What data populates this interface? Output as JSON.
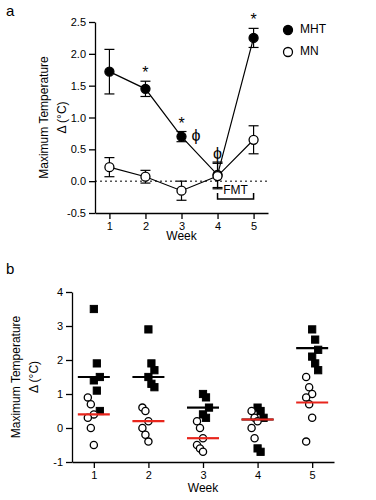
{
  "chart_data": [
    {
      "type": "line",
      "panel": "a",
      "x_label": "Week",
      "y_label": [
        "Maximum  Temperature",
        "Δ (°C)"
      ],
      "categories": [
        "1",
        "2",
        "3",
        "4",
        "5"
      ],
      "series": [
        {
          "name": "MHT",
          "color": "#000000",
          "marker": "circle",
          "line_style": "solid",
          "values": [
            1.72,
            1.45,
            0.7,
            0.1,
            2.25
          ],
          "errors": [
            0.35,
            0.12,
            0.08,
            0.2,
            0.15
          ]
        },
        {
          "name": "MN",
          "color": "#000000",
          "marker": "circle-open",
          "line_style": "solid",
          "values": [
            0.22,
            0.07,
            -0.15,
            0.08,
            0.65
          ],
          "errors": [
            0.15,
            0.1,
            0.15,
            0.2,
            0.22
          ]
        }
      ],
      "ylim": [
        -0.5,
        2.5
      ],
      "yticks": [
        -0.5,
        {
          "value": 0,
          "label": "0.0"
        },
        0.5,
        {
          "value": 1,
          "label": "1.0"
        },
        1.5,
        {
          "value": 2,
          "label": "2.0"
        },
        2.5
      ],
      "hline": 0,
      "annotations": [
        {
          "text": "*",
          "category": "2",
          "series": "MHT",
          "position": "above"
        },
        {
          "text": "*",
          "category": "3",
          "series": "MHT",
          "position": "above"
        },
        {
          "text": "ϕ",
          "category": "3",
          "series": "MHT",
          "position": "right"
        },
        {
          "text": "ϕ",
          "category": "4",
          "series": "MHT",
          "position": "above"
        },
        {
          "text": "*",
          "category": "5",
          "series": "MHT",
          "position": "above"
        }
      ],
      "bracket": {
        "text": "FMT",
        "from": "4",
        "to": "5"
      },
      "legend": "right"
    },
    {
      "type": "scatter",
      "panel": "b",
      "x_label": "Week",
      "y_label": [
        "Maximum  Temperature",
        "Δ (°C)"
      ],
      "categories": [
        "1",
        "2",
        "3",
        "4",
        "5"
      ],
      "series": [
        {
          "type": "scatter",
          "marker": "square",
          "color": "#000000",
          "values": [
            [
              3.5,
              1.9,
              1.5,
              1.4,
              1.1,
              0.5
            ],
            [
              2.9,
              1.9,
              1.7,
              1.5,
              1.3,
              1.2
            ],
            [
              1.0,
              0.9,
              0.6,
              0.4,
              0.3
            ],
            [
              0.6,
              0.5,
              0.3,
              -0.6,
              -0.7
            ],
            [
              2.9,
              2.6,
              2.3,
              2.1,
              1.9,
              1.7
            ]
          ]
        },
        {
          "type": "scatter",
          "marker": "circle-open",
          "color": "#000000",
          "values": [
            [
              0.9,
              0.7,
              0.4,
              0.3,
              0.0,
              -0.5
            ],
            [
              0.6,
              0.5,
              0.2,
              0.0,
              -0.2,
              -0.4
            ],
            [
              0.2,
              0.0,
              -0.3,
              -0.5,
              -0.6,
              -0.7
            ],
            [
              0.5,
              0.3,
              0.2,
              0.0,
              -0.3
            ],
            [
              1.5,
              1.2,
              1.0,
              0.9,
              0.7,
              0.3,
              -0.4
            ]
          ]
        },
        {
          "type": "mean",
          "line_style": "solid",
          "color": "#000000",
          "values": [
            1.5,
            1.5,
            0.6,
            0.25,
            2.35
          ]
        },
        {
          "type": "mean",
          "line_style": "solid",
          "color": "#e8251c",
          "values": [
            0.4,
            0.2,
            -0.3,
            0.25,
            0.75
          ]
        }
      ],
      "ylim": [
        -1,
        4
      ],
      "yticks": [
        -1,
        0,
        1,
        2,
        3,
        4
      ]
    }
  ]
}
